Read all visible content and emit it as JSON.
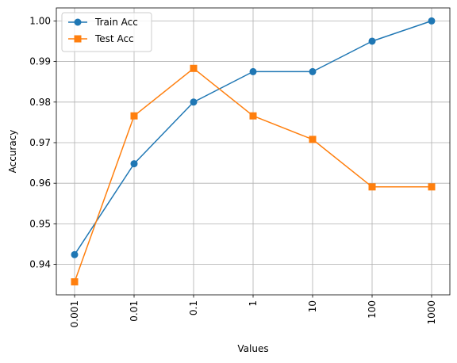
{
  "chart_data": {
    "type": "line",
    "categories": [
      "0.001",
      "0.01",
      "0.1",
      "1",
      "10",
      "100",
      "1000"
    ],
    "series": [
      {
        "name": "Train Acc",
        "marker": "circle",
        "color": "#1f77b4",
        "values": [
          0.9424,
          0.9648,
          0.98,
          0.9875,
          0.9875,
          0.995,
          1.0
        ]
      },
      {
        "name": "Test Acc",
        "marker": "square",
        "color": "#ff7f0e",
        "values": [
          0.9357,
          0.9766,
          0.9883,
          0.9766,
          0.9708,
          0.9591,
          0.9591
        ]
      }
    ],
    "xlabel": "Values",
    "ylabel": "Accuracy",
    "yticks": [
      0.94,
      0.95,
      0.96,
      0.97,
      0.98,
      0.99,
      1.0
    ],
    "ytick_labels": [
      "0.94",
      "0.95",
      "0.96",
      "0.97",
      "0.98",
      "0.99",
      "1.00"
    ],
    "ylim": [
      0.9325,
      1.0032
    ],
    "grid": true,
    "legend_position": "top-left",
    "x_tick_rotation": "vertical"
  }
}
